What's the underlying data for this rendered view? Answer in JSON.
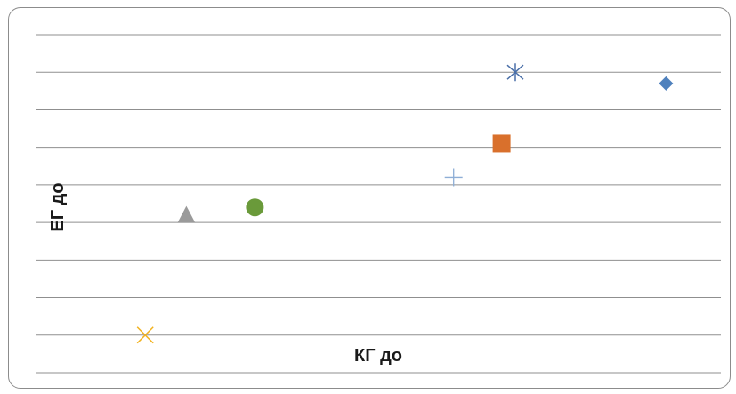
{
  "chart_data": {
    "type": "scatter",
    "title": "",
    "xlabel": "КГ до",
    "ylabel": "ЕГ до",
    "grid": true,
    "legend": "none",
    "ylim": [
      0,
      9
    ],
    "series": [
      {
        "marker": "diamond",
        "color": "#4f81bd",
        "x": 9.2,
        "y": 7.7
      },
      {
        "marker": "square",
        "color": "#d9702c",
        "x": 6.8,
        "y": 6.1
      },
      {
        "marker": "triangle",
        "color": "#9a9a9a",
        "x": 2.2,
        "y": 4.2
      },
      {
        "marker": "x",
        "color": "#f2b21e",
        "x": 1.6,
        "y": 1.0
      },
      {
        "marker": "star",
        "color": "#4a6fa8",
        "x": 7.0,
        "y": 8.0
      },
      {
        "marker": "circle",
        "color": "#6a9a3a",
        "x": 3.2,
        "y": 4.4
      },
      {
        "marker": "plus",
        "color": "#8eaed6",
        "x": 6.1,
        "y": 5.2
      }
    ]
  }
}
